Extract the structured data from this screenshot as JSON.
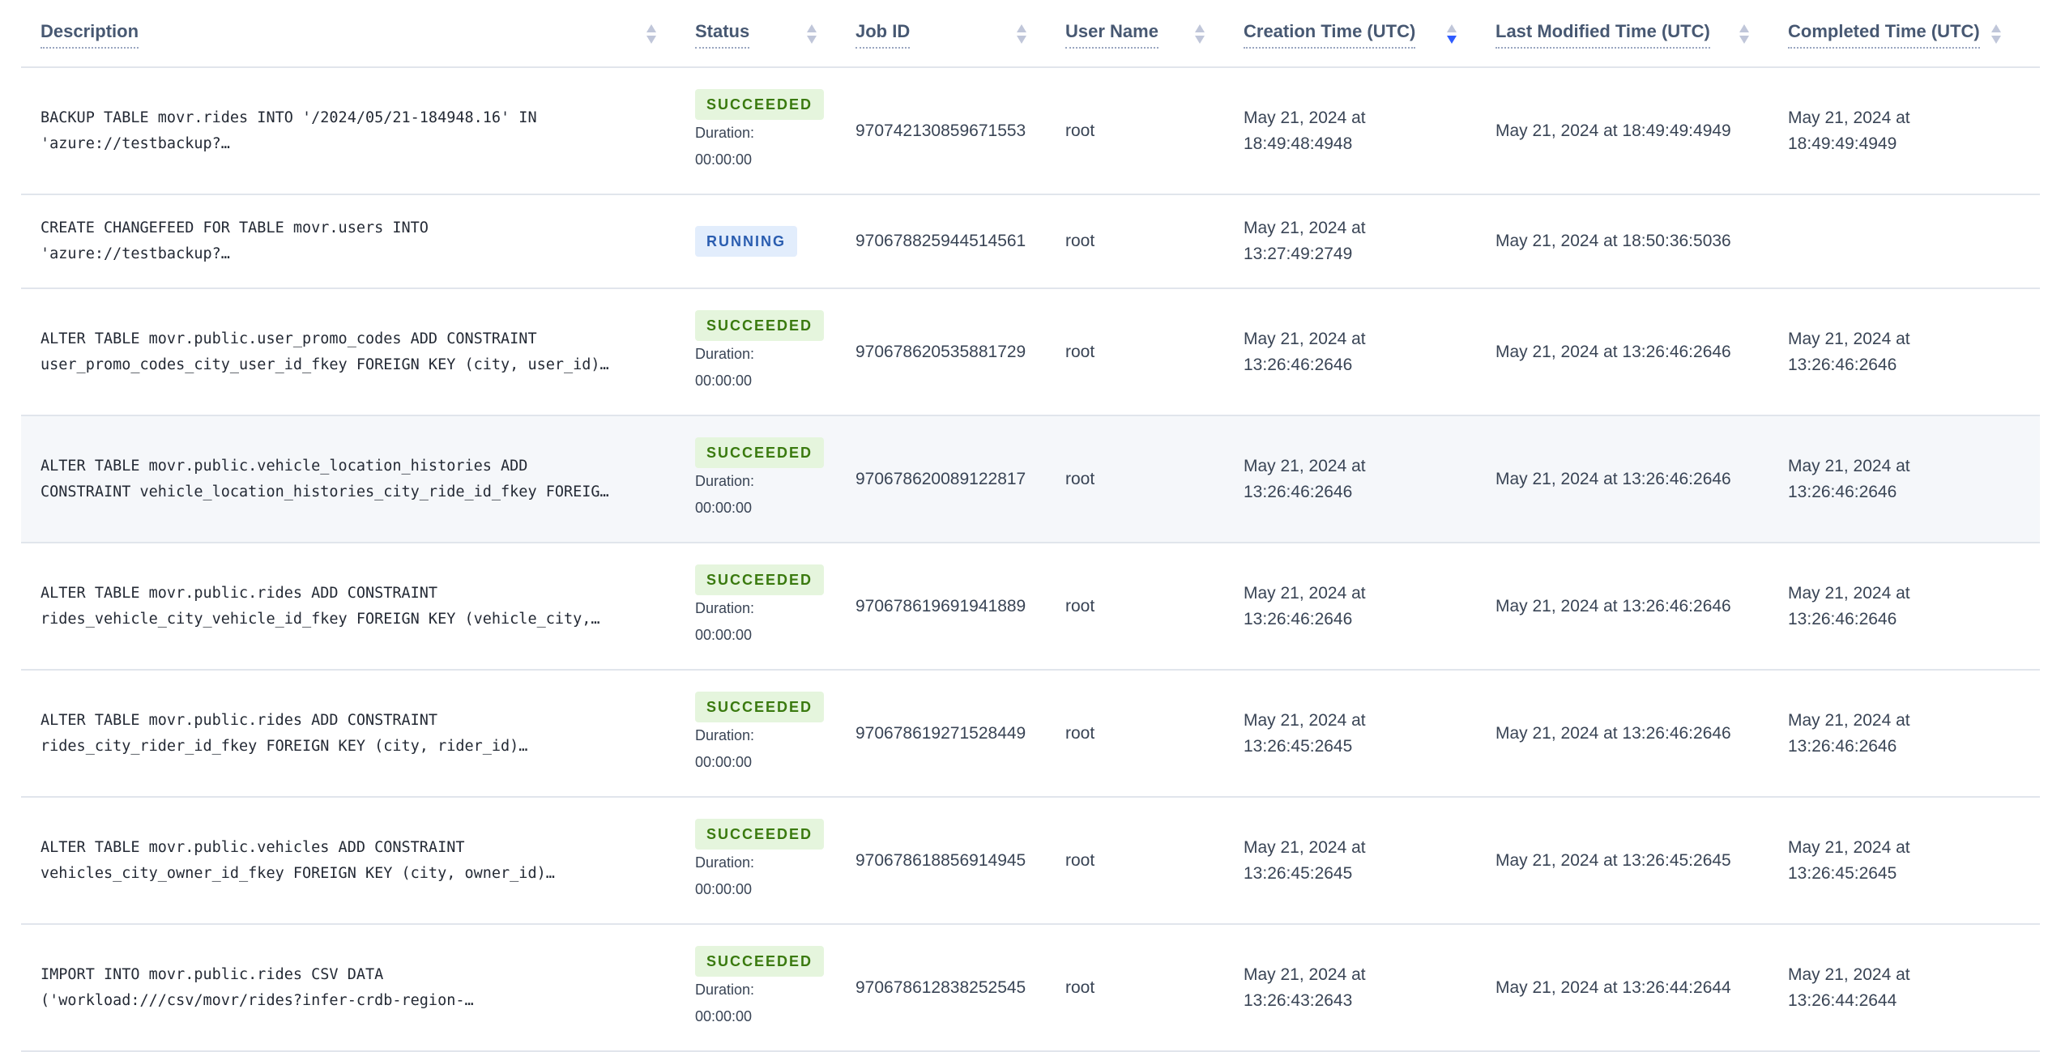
{
  "columns": [
    {
      "label": "Description",
      "sort": "none"
    },
    {
      "label": "Status",
      "sort": "none"
    },
    {
      "label": "Job ID",
      "sort": "none"
    },
    {
      "label": "User Name",
      "sort": "none"
    },
    {
      "label": "Creation Time (UTC)",
      "sort": "descending"
    },
    {
      "label": "Last Modified Time (UTC)",
      "sort": "none"
    },
    {
      "label": "Completed Time (UTC)",
      "sort": "none"
    }
  ],
  "duration_label": "Duration:",
  "rows": [
    {
      "desc1": "BACKUP TABLE movr.rides INTO '/2024/05/21-184948.16' IN",
      "desc2": "'azure://testbackup?…",
      "status": "SUCCEEDED",
      "duration": "00:00:00",
      "job_id": "970742130859671553",
      "user": "root",
      "created1": "May 21, 2024 at",
      "created2": "18:49:48:4948",
      "modified": "May 21, 2024 at 18:49:49:4949",
      "completed1": "May 21, 2024 at",
      "completed2": "18:49:49:4949"
    },
    {
      "desc1": "CREATE CHANGEFEED FOR TABLE movr.users INTO",
      "desc2": "'azure://testbackup?…",
      "status": "RUNNING",
      "duration": "",
      "job_id": "970678825944514561",
      "user": "root",
      "created1": "May 21, 2024 at",
      "created2": "13:27:49:2749",
      "modified": "May 21, 2024 at 18:50:36:5036",
      "completed1": "",
      "completed2": ""
    },
    {
      "desc1": "ALTER TABLE movr.public.user_promo_codes ADD CONSTRAINT",
      "desc2": "user_promo_codes_city_user_id_fkey FOREIGN KEY (city, user_id)…",
      "status": "SUCCEEDED",
      "duration": "00:00:00",
      "job_id": "970678620535881729",
      "user": "root",
      "created1": "May 21, 2024 at",
      "created2": "13:26:46:2646",
      "modified": "May 21, 2024 at 13:26:46:2646",
      "completed1": "May 21, 2024 at",
      "completed2": "13:26:46:2646"
    },
    {
      "desc1": "ALTER TABLE movr.public.vehicle_location_histories ADD",
      "desc2": "CONSTRAINT vehicle_location_histories_city_ride_id_fkey FOREIG…",
      "status": "SUCCEEDED",
      "duration": "00:00:00",
      "job_id": "970678620089122817",
      "user": "root",
      "created1": "May 21, 2024 at",
      "created2": "13:26:46:2646",
      "modified": "May 21, 2024 at 13:26:46:2646",
      "completed1": "May 21, 2024 at",
      "completed2": "13:26:46:2646"
    },
    {
      "desc1": "ALTER TABLE movr.public.rides ADD CONSTRAINT",
      "desc2": "rides_vehicle_city_vehicle_id_fkey FOREIGN KEY (vehicle_city,…",
      "status": "SUCCEEDED",
      "duration": "00:00:00",
      "job_id": "970678619691941889",
      "user": "root",
      "created1": "May 21, 2024 at",
      "created2": "13:26:46:2646",
      "modified": "May 21, 2024 at 13:26:46:2646",
      "completed1": "May 21, 2024 at",
      "completed2": "13:26:46:2646"
    },
    {
      "desc1": "ALTER TABLE movr.public.rides ADD CONSTRAINT",
      "desc2": "rides_city_rider_id_fkey FOREIGN KEY (city, rider_id)…",
      "status": "SUCCEEDED",
      "duration": "00:00:00",
      "job_id": "970678619271528449",
      "user": "root",
      "created1": "May 21, 2024 at",
      "created2": "13:26:45:2645",
      "modified": "May 21, 2024 at 13:26:46:2646",
      "completed1": "May 21, 2024 at",
      "completed2": "13:26:46:2646"
    },
    {
      "desc1": "ALTER TABLE movr.public.vehicles ADD CONSTRAINT",
      "desc2": "vehicles_city_owner_id_fkey FOREIGN KEY (city, owner_id)…",
      "status": "SUCCEEDED",
      "duration": "00:00:00",
      "job_id": "970678618856914945",
      "user": "root",
      "created1": "May 21, 2024 at",
      "created2": "13:26:45:2645",
      "modified": "May 21, 2024 at 13:26:45:2645",
      "completed1": "May 21, 2024 at",
      "completed2": "13:26:45:2645"
    },
    {
      "desc1": "IMPORT INTO movr.public.rides CSV DATA",
      "desc2": "('workload:///csv/movr/rides?infer-crdb-region-…",
      "status": "SUCCEEDED",
      "duration": "00:00:00",
      "job_id": "970678612838252545",
      "user": "root",
      "created1": "May 21, 2024 at",
      "created2": "13:26:43:2643",
      "modified": "May 21, 2024 at 13:26:44:2644",
      "completed1": "May 21, 2024 at",
      "completed2": "13:26:44:2644"
    }
  ]
}
